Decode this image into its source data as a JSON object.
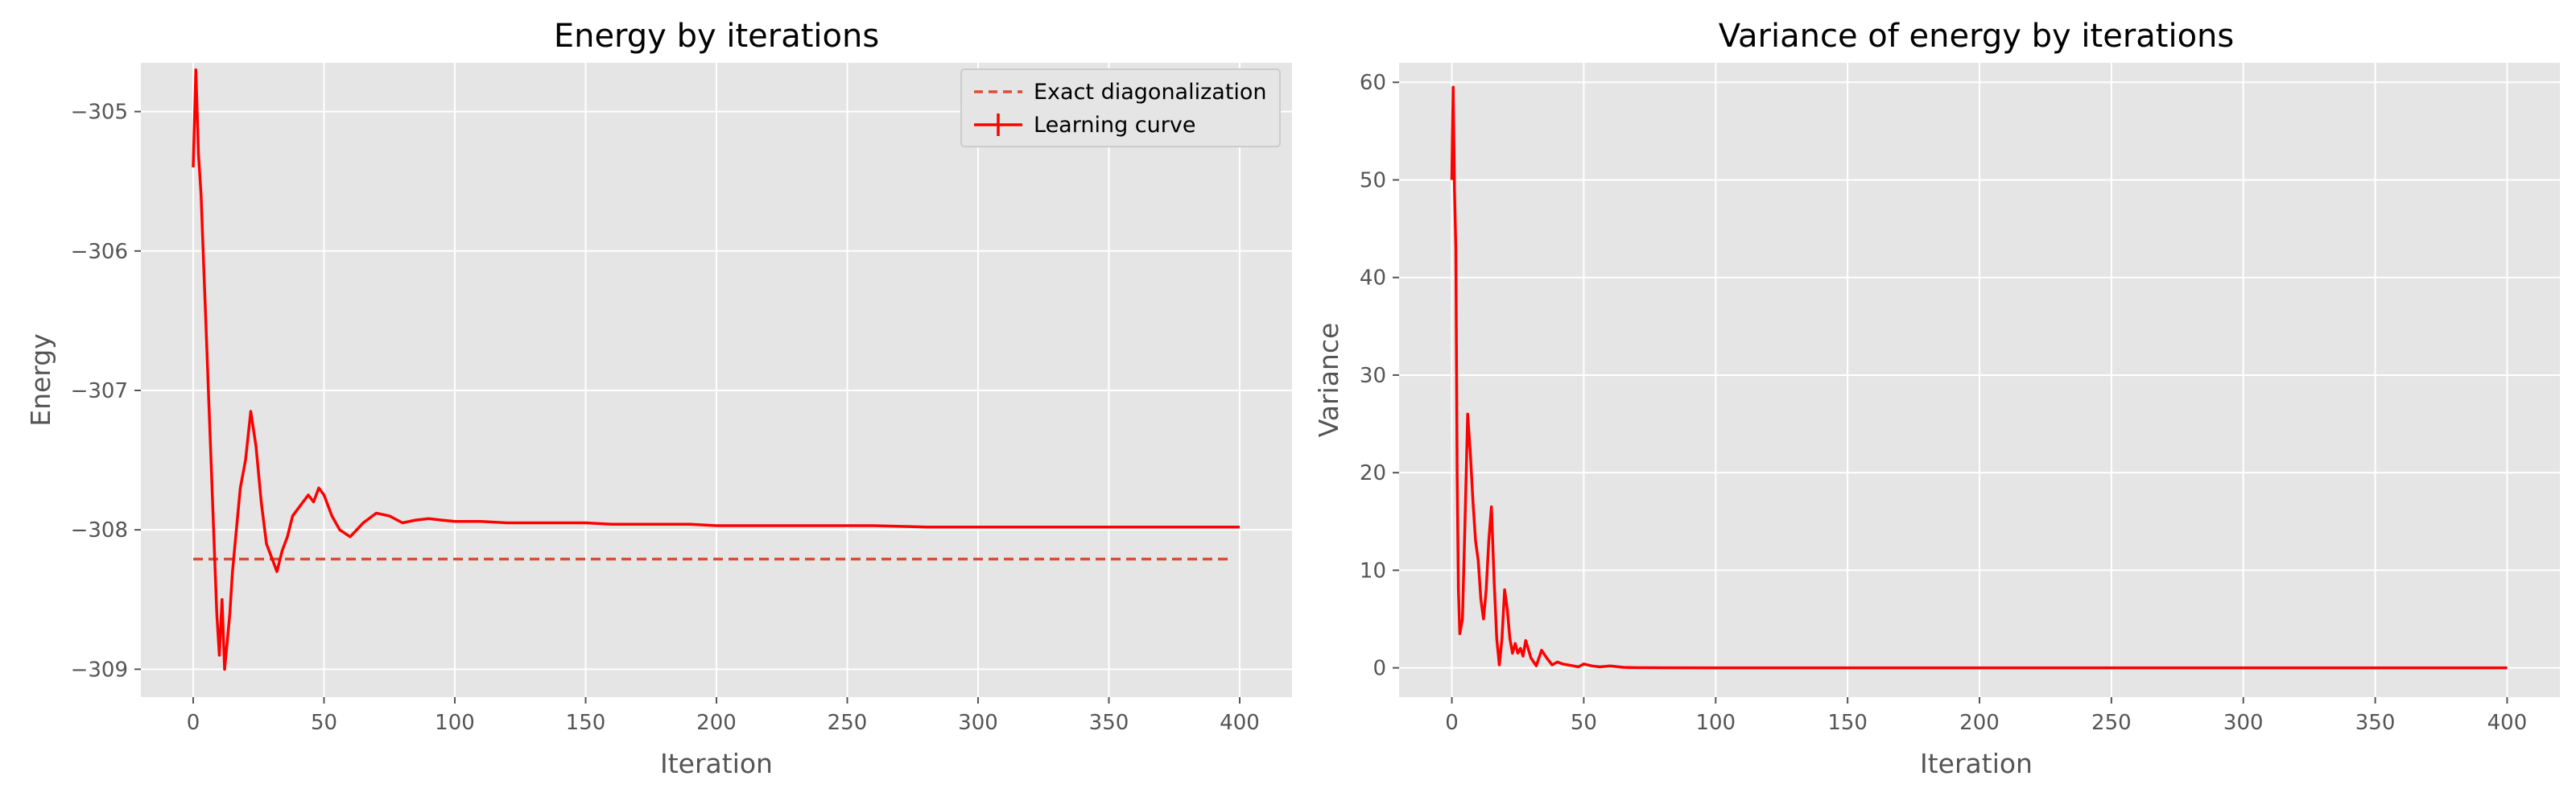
{
  "chart_data": [
    {
      "type": "line",
      "title": "Energy by iterations",
      "xlabel": "Iteration",
      "ylabel": "Energy",
      "xlim": [
        -20,
        420
      ],
      "ylim": [
        -309.2,
        -304.65
      ],
      "xticks": [
        0,
        50,
        100,
        150,
        200,
        250,
        300,
        350,
        400
      ],
      "yticks": [
        -309,
        -308,
        -307,
        -306,
        -305
      ],
      "ytick_labels": [
        "−309",
        "−308",
        "−307",
        "−306",
        "−305"
      ],
      "grid": true,
      "legend": "top-right",
      "series": [
        {
          "name": "Exact diagonalization",
          "style": "dashed",
          "color": "#e24a33",
          "x": [
            0,
            397
          ],
          "y": [
            -308.21,
            -308.21
          ]
        },
        {
          "name": "Learning curve",
          "style": "solid",
          "color": "#ff0000",
          "x": [
            0,
            1,
            2,
            3,
            4,
            5,
            6,
            7,
            8,
            9,
            10,
            11,
            12,
            13,
            14,
            15,
            16,
            18,
            20,
            22,
            24,
            26,
            28,
            30,
            32,
            34,
            36,
            38,
            40,
            42,
            44,
            46,
            48,
            50,
            53,
            56,
            60,
            65,
            70,
            75,
            80,
            85,
            90,
            95,
            100,
            110,
            120,
            130,
            140,
            150,
            160,
            170,
            180,
            190,
            200,
            220,
            240,
            260,
            280,
            300,
            320,
            340,
            360,
            380,
            400
          ],
          "y": [
            -305.4,
            -304.7,
            -305.3,
            -305.6,
            -306.1,
            -306.6,
            -307.1,
            -307.6,
            -308.1,
            -308.6,
            -308.9,
            -308.5,
            -309.0,
            -308.8,
            -308.6,
            -308.3,
            -308.1,
            -307.7,
            -307.5,
            -307.15,
            -307.4,
            -307.8,
            -308.1,
            -308.2,
            -308.3,
            -308.15,
            -308.05,
            -307.9,
            -307.85,
            -307.8,
            -307.75,
            -307.8,
            -307.7,
            -307.75,
            -307.9,
            -308.0,
            -308.05,
            -307.95,
            -307.88,
            -307.9,
            -307.95,
            -307.93,
            -307.92,
            -307.93,
            -307.94,
            -307.94,
            -307.95,
            -307.95,
            -307.95,
            -307.95,
            -307.96,
            -307.96,
            -307.96,
            -307.96,
            -307.97,
            -307.97,
            -307.97,
            -307.97,
            -307.98,
            -307.98,
            -307.98,
            -307.98,
            -307.98,
            -307.98,
            -307.98
          ]
        }
      ]
    },
    {
      "type": "line",
      "title": "Variance of energy by iterations",
      "xlabel": "Iteration",
      "ylabel": "Variance",
      "xlim": [
        -20,
        420
      ],
      "ylim": [
        -3,
        62
      ],
      "xticks": [
        0,
        50,
        100,
        150,
        200,
        250,
        300,
        350,
        400
      ],
      "yticks": [
        0,
        10,
        20,
        30,
        40,
        50,
        60
      ],
      "ytick_labels": [
        "0",
        "10",
        "20",
        "30",
        "40",
        "50",
        "60"
      ],
      "grid": true,
      "series": [
        {
          "style": "solid",
          "color": "#ff0000",
          "x": [
            0,
            0.5,
            1,
            1.5,
            2,
            2.5,
            3,
            4,
            5,
            6,
            7,
            8,
            9,
            10,
            11,
            12,
            13,
            14,
            15,
            16,
            17,
            18,
            19,
            20,
            21,
            22,
            23,
            24,
            25,
            26,
            27,
            28,
            30,
            32,
            34,
            36,
            38,
            40,
            42,
            44,
            46,
            48,
            50,
            53,
            56,
            60,
            65,
            70,
            80,
            100,
            150,
            200,
            250,
            300,
            350,
            400
          ],
          "y": [
            50,
            59.5,
            49,
            43,
            20,
            8,
            3.5,
            5,
            15,
            26,
            22,
            17,
            13,
            11,
            7,
            5,
            8,
            13,
            16.5,
            9,
            3,
            0.3,
            3,
            8,
            6,
            3,
            1.5,
            2.5,
            1.5,
            2,
            1.2,
            2.8,
            1.0,
            0.2,
            1.8,
            1.0,
            0.3,
            0.6,
            0.4,
            0.3,
            0.2,
            0.1,
            0.4,
            0.2,
            0.1,
            0.2,
            0.05,
            0.02,
            0.01,
            0.0,
            0.0,
            0.0,
            0.0,
            0.0,
            0.0,
            0.0
          ]
        }
      ]
    }
  ]
}
